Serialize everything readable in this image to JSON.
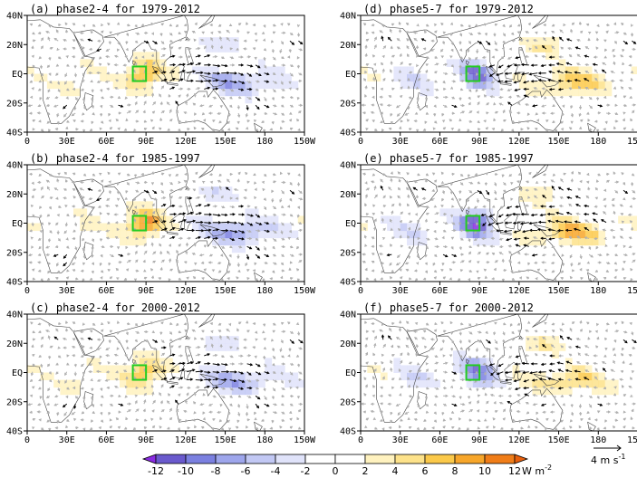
{
  "panels": [
    {
      "title": "(a) phase2-4  for 1979-2012",
      "sign": -1,
      "amp": 1.0
    },
    {
      "title": "(d) phase5-7  for 1979-2012",
      "sign": 1,
      "amp": 1.0
    },
    {
      "title": "(b) phase2-4  for 1985-1997",
      "sign": -1,
      "amp": 1.1
    },
    {
      "title": "(e) phase5-7  for 1985-1997",
      "sign": 1,
      "amp": 1.15
    },
    {
      "title": "(c) phase2-4  for 2000-2012",
      "sign": -1,
      "amp": 0.95
    },
    {
      "title": "(f) phase5-7  for 2000-2012",
      "sign": 1,
      "amp": 0.9
    }
  ],
  "axes": {
    "lat_ticks": [
      "40N",
      "20N",
      "EQ",
      "20S",
      "40S"
    ],
    "lon_ticks": [
      "0",
      "30E",
      "60E",
      "90E",
      "120E",
      "150E",
      "180",
      "150W"
    ],
    "lon_range": [
      0,
      210
    ],
    "lat_range": [
      -40,
      40
    ]
  },
  "colorbar": {
    "levels": [
      "-12",
      "-10",
      "-8",
      "-6",
      "-4",
      "-2",
      "0",
      "2",
      "4",
      "6",
      "8",
      "10",
      "12"
    ],
    "unit": "W m",
    "unit_exp": "-2",
    "colors": [
      "#8a2be2",
      "#6a5acd",
      "#7b80e0",
      "#9ea6ec",
      "#c2c8f4",
      "#e0e3fa",
      "#ffffff",
      "#ffffff",
      "#fff2bf",
      "#fde28a",
      "#fbc94a",
      "#f7a62a",
      "#f07d18",
      "#e8600c"
    ]
  },
  "reference_vector": {
    "label": "4 m s",
    "label_exp": "-1"
  },
  "box_color": "#22cc22"
}
